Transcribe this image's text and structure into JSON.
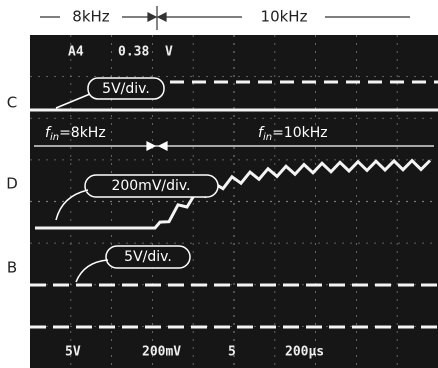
{
  "header": {
    "left": "8kHz",
    "right": "10kHz"
  },
  "channels": [
    "C",
    "D",
    "B"
  ],
  "readout_top": [
    "A4",
    "0.38",
    "V"
  ],
  "callouts": [
    "5V/div.",
    "200mV/div.",
    "5V/div."
  ],
  "frequency_labels": [
    {
      "symbol": "f",
      "subscript": "in",
      "text": "=8kHz"
    },
    {
      "symbol": "f",
      "subscript": "in",
      "text": "=10kHz"
    }
  ],
  "readout_bottom": [
    "5V",
    "200mV",
    "5",
    "200μs"
  ]
}
